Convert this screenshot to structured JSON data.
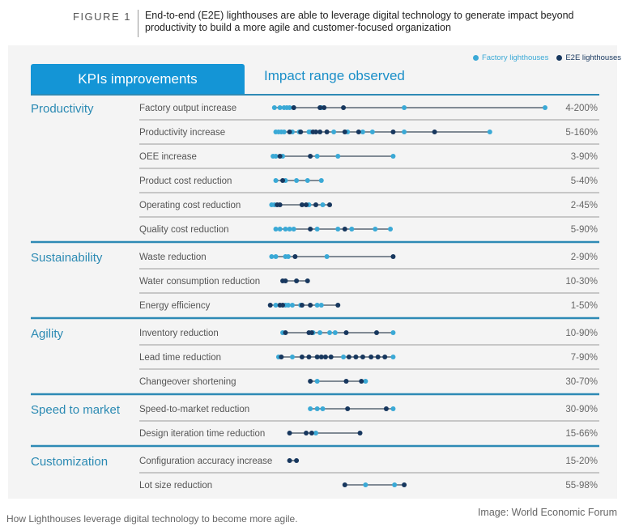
{
  "header": {
    "figure_label": "FIGURE 1",
    "title": "End-to-end (E2E) lighthouses are able to leverage digital technology to generate impact beyond productivity to build a more agile and customer-focused organization"
  },
  "tabs": {
    "kpis": "KPIs improvements",
    "impact": "Impact range observed"
  },
  "footer": {
    "caption": "How Lighthouses leverage digital technology to become more agile.",
    "credit": "Image: World Economic Forum"
  },
  "colors": {
    "factory": "#3aa9d6",
    "e2e": "#17375e",
    "accent": "#1495d6",
    "category_text": "#2b8ab3",
    "range_line": "#3a4a5a"
  },
  "chart_data": {
    "type": "scatter",
    "subtype": "dot-range",
    "title": "End-to-end (E2E) lighthouses are able to leverage digital technology to generate impact beyond productivity to build a more agile and customer-focused organization",
    "xlabel": "Impact range observed (%)",
    "xlim": [
      0,
      200
    ],
    "grid": false,
    "legend": {
      "position": "top-right",
      "entries": [
        "Factory lighthouses",
        "E2E lighthouses"
      ]
    },
    "series_names": {
      "factory": "Factory lighthouses",
      "e2e": "E2E lighthouses"
    },
    "groups": [
      {
        "category": "Productivity",
        "kpis": [
          {
            "label": "Factory output increase",
            "range": "4-200%",
            "factory": [
              4,
              8,
              11,
              13,
              15,
              18,
              38,
              98,
              200
            ],
            "e2e": [
              18,
              37,
              40,
              54
            ]
          },
          {
            "label": "Productivity increase",
            "range": "5-160%",
            "factory": [
              5,
              7,
              9,
              11,
              17,
              22,
              29,
              30,
              47,
              57,
              68,
              75,
              98,
              160
            ],
            "e2e": [
              15,
              23,
              32,
              34,
              37,
              42,
              55,
              65,
              90,
              120
            ]
          },
          {
            "label": "OEE increase",
            "range": "3-90%",
            "factory": [
              3,
              5,
              10,
              35,
              50,
              90
            ],
            "e2e": [
              8,
              30
            ]
          },
          {
            "label": "Product cost reduction",
            "range": "5-40%",
            "factory": [
              5,
              12,
              20,
              28,
              38
            ],
            "e2e": [
              10
            ]
          },
          {
            "label": "Operating cost reduction",
            "range": "2-45%",
            "factory": [
              2,
              4,
              29,
              39
            ],
            "e2e": [
              6,
              8,
              24,
              27,
              34,
              44
            ]
          },
          {
            "label": "Quality cost reduction",
            "range": "5-90%",
            "factory": [
              5,
              8,
              12,
              15,
              18,
              35,
              50,
              60,
              77,
              88
            ],
            "e2e": [
              30,
              55
            ]
          }
        ]
      },
      {
        "category": "Sustainability",
        "kpis": [
          {
            "label": "Waste reduction",
            "range": "2-90%",
            "factory": [
              2,
              5,
              12,
              14,
              42
            ],
            "e2e": [
              19,
              90
            ]
          },
          {
            "label": "Water consumption reduction",
            "range": "10-30%",
            "factory": [],
            "e2e": [
              10,
              12,
              20,
              28
            ]
          },
          {
            "label": "Energy efficiency",
            "range": "1-50%",
            "factory": [
              5,
              12,
              14,
              17,
              23,
              35,
              38
            ],
            "e2e": [
              1,
              8,
              10,
              24,
              30,
              50
            ]
          }
        ]
      },
      {
        "category": "Agility",
        "kpis": [
          {
            "label": "Inventory reduction",
            "range": "10-90%",
            "factory": [
              10,
              32,
              37,
              44,
              48,
              90
            ],
            "e2e": [
              12,
              29,
              31,
              56,
              78
            ]
          },
          {
            "label": "Lead time reduction",
            "range": "7-90%",
            "factory": [
              7,
              17,
              54,
              90
            ],
            "e2e": [
              9,
              24,
              29,
              35,
              38,
              41,
              45,
              58,
              63,
              68,
              74,
              79,
              84
            ]
          },
          {
            "label": "Changeover shortening",
            "range": "30-70%",
            "factory": [
              35,
              70
            ],
            "e2e": [
              30,
              56,
              67
            ]
          }
        ]
      },
      {
        "category": "Speed to market",
        "kpis": [
          {
            "label": "Speed-to-market reduction",
            "range": "30-90%",
            "factory": [
              30,
              35,
              39,
              90
            ],
            "e2e": [
              57,
              85
            ]
          },
          {
            "label": "Design iteration time reduction",
            "range": "15-66%",
            "factory": [
              34
            ],
            "e2e": [
              15,
              27,
              31,
              66
            ]
          }
        ]
      },
      {
        "category": "Customization",
        "kpis": [
          {
            "label": "Configuration accuracy increase",
            "range": "15-20%",
            "factory": [],
            "e2e": [
              15,
              20
            ]
          },
          {
            "label": "Lot size reduction",
            "range": "55-98%",
            "factory": [
              70,
              91
            ],
            "e2e": [
              55,
              98
            ]
          }
        ]
      }
    ]
  }
}
